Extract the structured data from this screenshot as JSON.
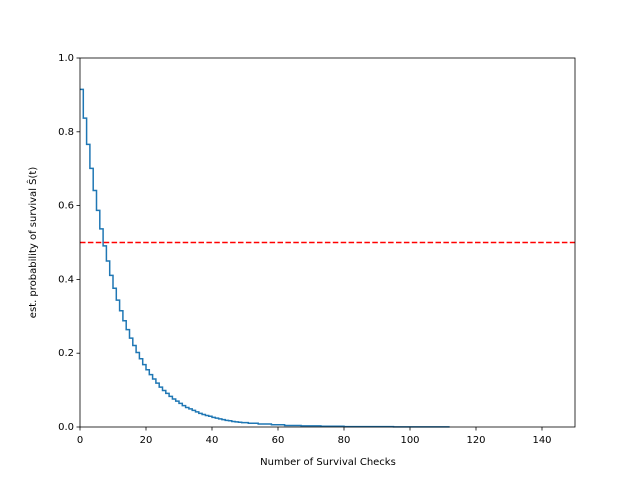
{
  "chart_data": {
    "type": "step",
    "xlabel": "Number of Survival Checks",
    "ylabel": "est. probability of survival Ŝ(t)",
    "x": [
      0,
      1,
      2,
      3,
      4,
      5,
      6,
      7,
      8,
      9,
      10,
      11,
      12,
      13,
      14,
      15,
      16,
      17,
      18,
      19,
      20,
      21,
      22,
      23,
      24,
      25,
      26,
      27,
      28,
      29,
      30,
      31,
      32,
      33,
      34,
      35,
      36,
      37,
      38,
      39,
      40,
      41,
      42,
      43,
      44,
      45,
      46,
      47,
      48,
      49,
      51,
      54,
      58,
      62,
      67,
      73,
      80,
      95,
      112
    ],
    "series": [
      {
        "color": "#1f77b4",
        "values": [
          0.915,
          0.837,
          0.766,
          0.701,
          0.641,
          0.587,
          0.537,
          0.491,
          0.45,
          0.411,
          0.376,
          0.344,
          0.315,
          0.288,
          0.264,
          0.241,
          0.221,
          0.202,
          0.185,
          0.169,
          0.155,
          0.142,
          0.13,
          0.119,
          0.108,
          0.099,
          0.091,
          0.083,
          0.076,
          0.07,
          0.064,
          0.058,
          0.053,
          0.049,
          0.045,
          0.041,
          0.037,
          0.034,
          0.031,
          0.029,
          0.026,
          0.024,
          0.022,
          0.02,
          0.018,
          0.017,
          0.015,
          0.014,
          0.013,
          0.012,
          0.01,
          0.008,
          0.006,
          0.004,
          0.003,
          0.002,
          0.001,
          0.0005,
          0.0005
        ]
      }
    ],
    "hline": {
      "value": 0.5,
      "color": "#ff0000",
      "dashed": true
    },
    "xlim": [
      0,
      150
    ],
    "xticks": [
      0,
      20,
      40,
      60,
      80,
      100,
      120,
      140
    ],
    "ylim": [
      0,
      1
    ],
    "yticks": [
      {
        "value": 0,
        "label": "0.0"
      },
      {
        "value": 0.2,
        "label": "0.2"
      },
      {
        "value": 0.4,
        "label": "0.4"
      },
      {
        "value": 0.6,
        "label": "0.6"
      },
      {
        "value": 0.8,
        "label": "0.8"
      },
      {
        "value": 1,
        "label": "1.0"
      }
    ]
  }
}
